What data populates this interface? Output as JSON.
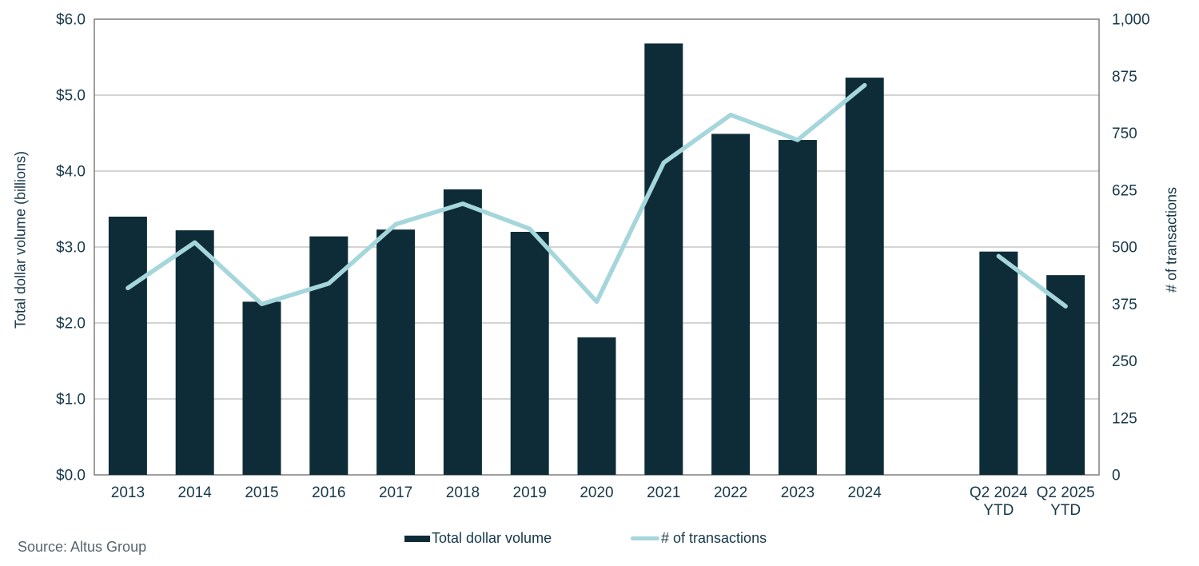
{
  "chart_data": {
    "type": "bar+line",
    "title": "",
    "categories": [
      "2013",
      "2014",
      "2015",
      "2016",
      "2017",
      "2018",
      "2019",
      "2020",
      "2021",
      "2022",
      "2023",
      "2024",
      "Q2 2024\nYTD",
      "Q2 2025\nYTD"
    ],
    "series": [
      {
        "name": "Total dollar volume",
        "type": "bar",
        "axis": "left",
        "color": "#0d2c38",
        "values": [
          3.4,
          3.22,
          2.28,
          3.14,
          3.23,
          3.76,
          3.2,
          1.81,
          5.68,
          4.49,
          4.41,
          5.23,
          2.94,
          2.63
        ]
      },
      {
        "name": "# of transactions",
        "type": "line",
        "axis": "right",
        "color": "#a5d6dc",
        "values": [
          410,
          510,
          375,
          420,
          550,
          595,
          540,
          380,
          685,
          790,
          735,
          855,
          480,
          370
        ],
        "segments": [
          [
            0,
            11
          ],
          [
            12,
            13
          ]
        ]
      }
    ],
    "left_axis": {
      "label": "Total dollar volume (billions)",
      "min": 0,
      "max": 6,
      "ticks": [
        "$0.0",
        "$1.0",
        "$2.0",
        "$3.0",
        "$4.0",
        "$5.0",
        "$6.0"
      ]
    },
    "right_axis": {
      "label": "# of transactions",
      "min": 0,
      "max": 1000,
      "ticks": [
        "0",
        "125",
        "250",
        "375",
        "500",
        "625",
        "750",
        "875",
        "1,000"
      ]
    },
    "grid": "horizontal",
    "legend_position": "bottom",
    "layout": {
      "total_slots": 15,
      "category_slots": [
        0,
        1,
        2,
        3,
        4,
        5,
        6,
        7,
        8,
        9,
        10,
        11,
        13,
        14
      ]
    }
  },
  "legend": {
    "items": [
      {
        "label": "Total dollar volume"
      },
      {
        "label": "# of transactions"
      }
    ]
  },
  "source": {
    "label": "Source:  Altus Group"
  },
  "colors": {
    "bar": "#0d2c38",
    "line": "#a5d6dc",
    "text": "#17384a",
    "source_text": "#57656c",
    "gridline": "#c6c6c6",
    "border": "#7f7f7f"
  }
}
